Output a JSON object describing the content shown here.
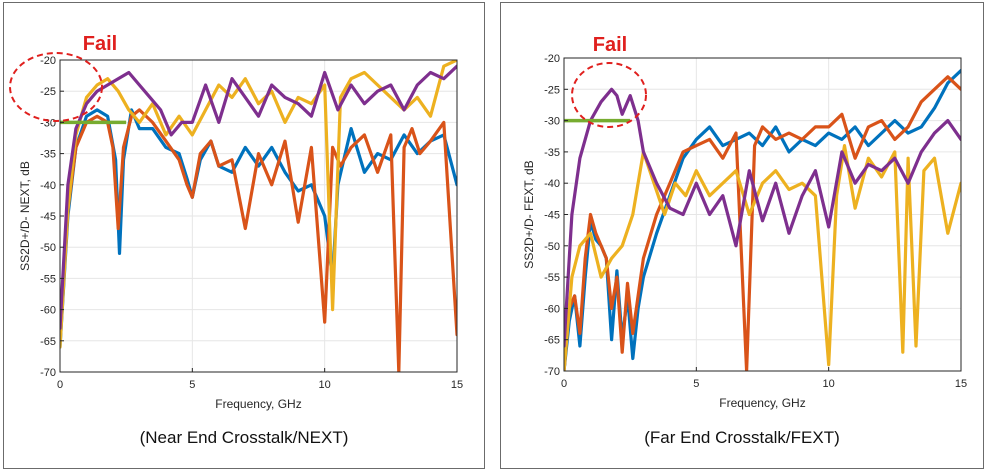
{
  "panels": [
    {
      "caption": "(Near End Crosstalk/NEXT)",
      "annotation": "Fail",
      "chart_data": {
        "type": "line",
        "xlabel": "Frequency, GHz",
        "ylabel": "SS2D+/D- NEXT, dB",
        "xlim": [
          0,
          15
        ],
        "ylim": [
          -70,
          -20
        ],
        "xticks": [
          0,
          5,
          10,
          15
        ],
        "yticks": [
          -70,
          -65,
          -60,
          -55,
          -50,
          -45,
          -40,
          -35,
          -30,
          -25,
          -20
        ],
        "grid": true,
        "limit_line": {
          "x": [
            0,
            2.5
          ],
          "y": -30,
          "color": "#77ac30"
        },
        "series": [
          {
            "color": "#0072bd",
            "x": [
              0,
              0.3,
              0.6,
              1.0,
              1.4,
              1.8,
              2.1,
              2.25,
              2.4,
              2.7,
              3.0,
              3.5,
              4.0,
              4.5,
              4.8,
              5.0,
              5.3,
              5.7,
              6.0,
              6.5,
              7.0,
              7.5,
              8.0,
              8.5,
              9.0,
              9.5,
              10.0,
              10.3,
              10.5,
              11.0,
              11.5,
              12.0,
              12.5,
              13.0,
              13.5,
              14.0,
              14.5,
              15.0
            ],
            "y": [
              -66,
              -45,
              -34,
              -29,
              -28,
              -29,
              -36,
              -51,
              -36,
              -28,
              -31,
              -31,
              -34,
              -35,
              -39,
              -42,
              -36,
              -33,
              -37,
              -38,
              -34,
              -37,
              -34,
              -38,
              -41,
              -40,
              -45,
              -55,
              -40,
              -31,
              -38,
              -35,
              -36,
              -32,
              -35,
              -33,
              -32,
              -40
            ]
          },
          {
            "color": "#d95319",
            "x": [
              0,
              0.3,
              0.6,
              1.0,
              1.4,
              1.8,
              2.0,
              2.2,
              2.4,
              2.7,
              3.0,
              3.5,
              4.0,
              4.5,
              4.8,
              5.0,
              5.3,
              5.7,
              6.0,
              6.5,
              7.0,
              7.5,
              8.0,
              8.5,
              9.0,
              9.5,
              10.0,
              10.3,
              10.6,
              11.0,
              11.5,
              12.0,
              12.5,
              12.8,
              13.0,
              13.3,
              13.6,
              14.0,
              14.5,
              15.0
            ],
            "y": [
              -65,
              -44,
              -34,
              -30,
              -29,
              -30,
              -34,
              -47,
              -34,
              -29,
              -28,
              -30,
              -33,
              -36,
              -40,
              -42,
              -35,
              -33,
              -37,
              -36,
              -47,
              -35,
              -40,
              -33,
              -46,
              -34,
              -62,
              -34,
              -37,
              -34,
              -32,
              -38,
              -32,
              -70,
              -34,
              -31,
              -35,
              -33,
              -30,
              -64
            ]
          },
          {
            "color": "#edb120",
            "x": [
              0,
              0.3,
              0.6,
              1.0,
              1.4,
              1.8,
              2.2,
              2.6,
              3.0,
              3.5,
              4.0,
              4.5,
              5.0,
              5.5,
              6.0,
              6.5,
              7.0,
              7.5,
              8.0,
              8.5,
              9.0,
              9.5,
              10.0,
              10.3,
              10.6,
              11.0,
              11.5,
              12.0,
              12.5,
              13.0,
              13.5,
              14.0,
              14.5,
              15.0
            ],
            "y": [
              -66,
              -44,
              -32,
              -26,
              -24,
              -23,
              -25,
              -28,
              -30,
              -27,
              -32,
              -29,
              -32,
              -28,
              -24,
              -26,
              -23,
              -27,
              -25,
              -30,
              -26,
              -27,
              -24,
              -60,
              -26,
              -23,
              -22,
              -24,
              -26,
              -28,
              -26,
              -29,
              -21,
              -20
            ]
          },
          {
            "color": "#7e2f8e",
            "x": [
              0,
              0.3,
              0.6,
              1.0,
              1.4,
              1.8,
              2.2,
              2.6,
              3.0,
              3.4,
              3.8,
              4.2,
              4.6,
              5.0,
              5.5,
              6.0,
              6.5,
              7.0,
              7.5,
              8.0,
              8.5,
              9.0,
              9.5,
              10.0,
              10.5,
              11.0,
              11.5,
              12.0,
              12.5,
              13.0,
              13.5,
              14.0,
              14.5,
              15.0
            ],
            "y": [
              -63,
              -40,
              -31,
              -27,
              -25,
              -24,
              -23,
              -22,
              -24,
              -26,
              -28,
              -32,
              -30,
              -30,
              -24,
              -30,
              -23,
              -26,
              -29,
              -24,
              -26,
              -27,
              -29,
              -22,
              -28,
              -24,
              -27,
              -25,
              -24,
              -28,
              -24,
              -22,
              -23,
              -21
            ]
          }
        ]
      }
    },
    {
      "caption": "(Far End Crosstalk/FEXT)",
      "annotation": "Fail",
      "chart_data": {
        "type": "line",
        "xlabel": "Frequency, GHz",
        "ylabel": "SS2D+/D- FEXT, dB",
        "xlim": [
          0,
          15
        ],
        "ylim": [
          -70,
          -20
        ],
        "xticks": [
          0,
          5,
          10,
          15
        ],
        "yticks": [
          -70,
          -65,
          -60,
          -55,
          -50,
          -45,
          -40,
          -35,
          -30,
          -25,
          -20
        ],
        "grid": true,
        "limit_line": {
          "x": [
            0,
            2.5
          ],
          "y": -30,
          "color": "#77ac30"
        },
        "series": [
          {
            "color": "#0072bd",
            "x": [
              0,
              0.2,
              0.4,
              0.6,
              0.8,
              1.0,
              1.2,
              1.4,
              1.6,
              1.8,
              2.0,
              2.2,
              2.4,
              2.6,
              2.8,
              3.0,
              3.5,
              4.0,
              4.5,
              5.0,
              5.5,
              6.0,
              6.5,
              7.0,
              7.5,
              8.0,
              8.5,
              9.0,
              9.5,
              10.0,
              10.5,
              11.0,
              11.5,
              12.0,
              12.5,
              13.0,
              13.5,
              14.0,
              14.5,
              15.0
            ],
            "y": [
              -70,
              -62,
              -58,
              -66,
              -55,
              -46,
              -49,
              -50,
              -52,
              -65,
              -54,
              -65,
              -58,
              -68,
              -60,
              -55,
              -48,
              -42,
              -36,
              -33,
              -31,
              -34,
              -33,
              -32,
              -34,
              -31,
              -35,
              -33,
              -34,
              -32,
              -33,
              -31,
              -34,
              -32,
              -30,
              -32,
              -31,
              -28,
              -24,
              -22
            ]
          },
          {
            "color": "#d95319",
            "x": [
              0,
              0.2,
              0.4,
              0.6,
              0.8,
              1.0,
              1.2,
              1.4,
              1.6,
              1.8,
              2.0,
              2.2,
              2.4,
              2.6,
              2.8,
              3.0,
              3.5,
              4.0,
              4.5,
              5.0,
              5.5,
              6.0,
              6.5,
              6.9,
              7.2,
              7.5,
              8.0,
              8.5,
              9.0,
              9.5,
              10.0,
              10.5,
              11.0,
              11.5,
              12.0,
              12.5,
              13.0,
              13.5,
              14.0,
              14.5,
              15.0
            ],
            "y": [
              -70,
              -60,
              -58,
              -64,
              -52,
              -45,
              -48,
              -50,
              -52,
              -60,
              -55,
              -67,
              -56,
              -64,
              -58,
              -52,
              -45,
              -40,
              -35,
              -34,
              -33,
              -36,
              -32,
              -70,
              -34,
              -31,
              -33,
              -32,
              -33,
              -31,
              -31,
              -29,
              -36,
              -31,
              -30,
              -33,
              -31,
              -27,
              -25,
              -23,
              -25
            ]
          },
          {
            "color": "#edb120",
            "x": [
              0,
              0.3,
              0.6,
              1.0,
              1.4,
              1.8,
              2.2,
              2.6,
              3.0,
              3.4,
              3.8,
              4.2,
              4.6,
              5.0,
              5.5,
              6.0,
              6.5,
              7.0,
              7.5,
              8.0,
              8.5,
              9.0,
              9.5,
              10.0,
              10.3,
              10.6,
              11.0,
              11.5,
              12.0,
              12.5,
              12.8,
              13.0,
              13.3,
              13.6,
              14.0,
              14.5,
              15.0
            ],
            "y": [
              -70,
              -55,
              -50,
              -48,
              -55,
              -52,
              -50,
              -45,
              -35,
              -40,
              -45,
              -40,
              -42,
              -38,
              -42,
              -40,
              -38,
              -45,
              -40,
              -38,
              -41,
              -40,
              -42,
              -69,
              -42,
              -34,
              -44,
              -36,
              -39,
              -35,
              -67,
              -36,
              -66,
              -38,
              -36,
              -48,
              -40
            ]
          },
          {
            "color": "#7e2f8e",
            "x": [
              0,
              0.3,
              0.6,
              1.0,
              1.4,
              1.8,
              2.0,
              2.2,
              2.5,
              2.8,
              3.0,
              3.5,
              4.0,
              4.5,
              5.0,
              5.5,
              6.0,
              6.5,
              7.0,
              7.5,
              8.0,
              8.5,
              9.0,
              9.5,
              10.0,
              10.5,
              11.0,
              11.5,
              12.0,
              12.5,
              13.0,
              13.5,
              14.0,
              14.5,
              15.0
            ],
            "y": [
              -66,
              -45,
              -36,
              -30,
              -27,
              -25,
              -26,
              -29,
              -26,
              -30,
              -35,
              -40,
              -44,
              -45,
              -40,
              -45,
              -42,
              -50,
              -38,
              -46,
              -40,
              -48,
              -42,
              -38,
              -47,
              -35,
              -40,
              -37,
              -38,
              -36,
              -40,
              -35,
              -32,
              -30,
              -33
            ]
          }
        ]
      }
    }
  ]
}
